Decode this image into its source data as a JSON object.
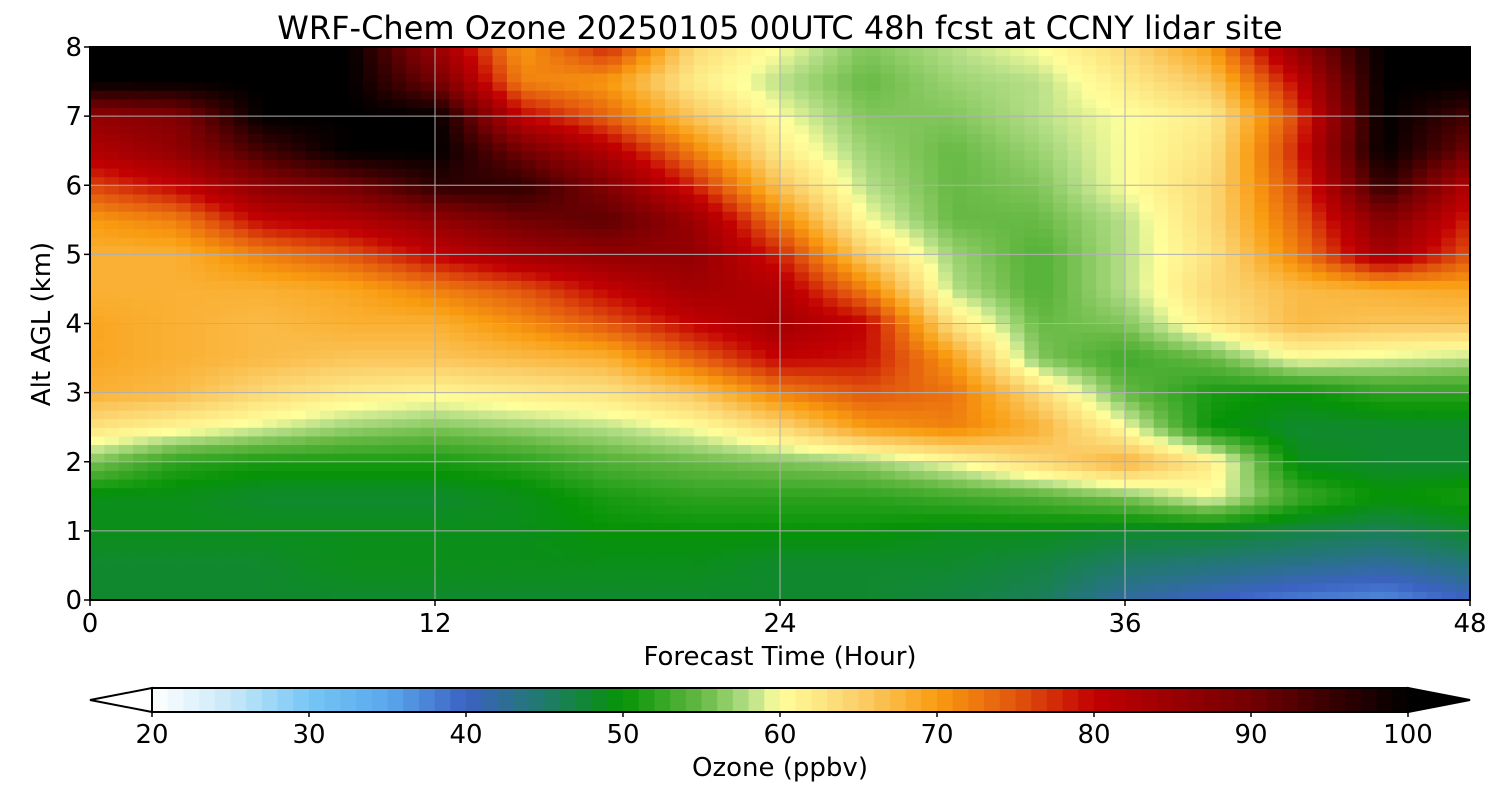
{
  "chart_data": {
    "type": "heatmap",
    "title": "WRF-Chem Ozone  20250105 00UTC 48h fcst at CCNY lidar site",
    "xlabel": "Forecast Time (Hour)",
    "ylabel": "Alt AGL (km)",
    "xlim": [
      0,
      48
    ],
    "ylim": [
      0,
      8
    ],
    "x_ticks": [
      "0",
      "12",
      "24",
      "36",
      "48"
    ],
    "y_ticks": [
      "0",
      "1",
      "2",
      "3",
      "4",
      "5",
      "6",
      "7",
      "8"
    ],
    "grid": true,
    "x": [
      0,
      3,
      6,
      9,
      12,
      15,
      18,
      21,
      24,
      27,
      30,
      33,
      36,
      39,
      42,
      45,
      48
    ],
    "y": [
      0,
      0.5,
      1,
      1.5,
      2,
      2.5,
      3,
      3.5,
      4,
      4.5,
      5,
      5.5,
      6,
      6.5,
      7,
      7.5,
      8
    ],
    "z": [
      [
        48,
        48,
        48,
        48,
        48,
        48,
        48,
        48,
        48,
        48,
        47,
        46,
        42,
        40,
        38,
        37,
        40
      ],
      [
        48,
        48,
        48,
        49,
        49,
        49,
        49,
        49,
        48,
        48,
        48,
        47,
        45,
        44,
        43,
        42,
        44
      ],
      [
        49,
        49,
        49,
        49,
        49,
        49,
        50,
        50,
        50,
        50,
        49,
        49,
        48,
        48,
        47,
        46,
        48
      ],
      [
        49,
        49,
        48,
        48,
        48,
        49,
        51,
        52,
        52,
        52,
        53,
        54,
        56,
        60,
        53,
        50,
        51
      ],
      [
        56,
        52,
        51,
        51,
        51,
        52,
        54,
        55,
        56,
        57,
        60,
        64,
        68,
        62,
        49,
        48,
        48
      ],
      [
        63,
        61,
        59,
        57,
        56,
        57,
        58,
        60,
        64,
        70,
        72,
        68,
        60,
        50,
        48,
        48,
        48
      ],
      [
        68,
        67,
        64,
        62,
        61,
        62,
        63,
        66,
        72,
        75,
        73,
        64,
        55,
        51,
        50,
        52,
        52
      ],
      [
        69,
        68,
        67,
        66,
        66,
        67,
        68,
        74,
        80,
        79,
        70,
        56,
        53,
        55,
        60,
        59,
        58
      ],
      [
        69,
        68,
        67,
        68,
        68,
        71,
        75,
        80,
        84,
        80,
        63,
        55,
        56,
        62,
        67,
        66,
        66
      ],
      [
        68,
        68,
        68,
        69,
        72,
        75,
        80,
        84,
        82,
        72,
        58,
        54,
        58,
        64,
        67,
        68,
        69
      ],
      [
        68,
        68,
        72,
        75,
        80,
        84,
        86,
        86,
        78,
        65,
        57,
        54,
        58,
        63,
        72,
        84,
        75
      ],
      [
        70,
        72,
        80,
        82,
        86,
        90,
        92,
        85,
        72,
        60,
        55,
        55,
        58,
        64,
        74,
        88,
        78
      ],
      [
        76,
        80,
        87,
        90,
        96,
        96,
        88,
        78,
        66,
        58,
        55,
        56,
        60,
        64,
        76,
        96,
        82
      ],
      [
        82,
        86,
        94,
        100,
        100,
        90,
        82,
        72,
        62,
        57,
        55,
        57,
        60,
        63,
        78,
        100,
        90
      ],
      [
        86,
        88,
        100,
        100,
        100,
        80,
        74,
        66,
        60,
        56,
        56,
        58,
        60,
        62,
        76,
        100,
        94
      ],
      [
        100,
        100,
        100,
        100,
        90,
        72,
        70,
        62,
        58,
        55,
        57,
        58,
        62,
        66,
        80,
        100,
        100
      ],
      [
        100,
        100,
        100,
        100,
        85,
        70,
        78,
        64,
        60,
        56,
        58,
        60,
        64,
        70,
        86,
        100,
        100
      ]
    ],
    "colorbar": {
      "label": "Ozone  (ppbv)",
      "min": 20,
      "max": 100,
      "ticks": [
        "20",
        "30",
        "40",
        "50",
        "60",
        "70",
        "80",
        "90",
        "100"
      ],
      "extend": "both",
      "stops": [
        {
          "v": 20,
          "c": "#ffffff"
        },
        {
          "v": 25,
          "c": "#c8e8f8"
        },
        {
          "v": 30,
          "c": "#76c6f5"
        },
        {
          "v": 35,
          "c": "#5aa8ec"
        },
        {
          "v": 40,
          "c": "#3c62c2"
        },
        {
          "v": 45,
          "c": "#1f7a6a"
        },
        {
          "v": 50,
          "c": "#069306"
        },
        {
          "v": 55,
          "c": "#66b944"
        },
        {
          "v": 58,
          "c": "#b6df88"
        },
        {
          "v": 60,
          "c": "#ffff9c"
        },
        {
          "v": 65,
          "c": "#fbcf6a"
        },
        {
          "v": 70,
          "c": "#f99c10"
        },
        {
          "v": 75,
          "c": "#e2560e"
        },
        {
          "v": 80,
          "c": "#c20002"
        },
        {
          "v": 90,
          "c": "#720002"
        },
        {
          "v": 100,
          "c": "#000000"
        }
      ]
    }
  }
}
